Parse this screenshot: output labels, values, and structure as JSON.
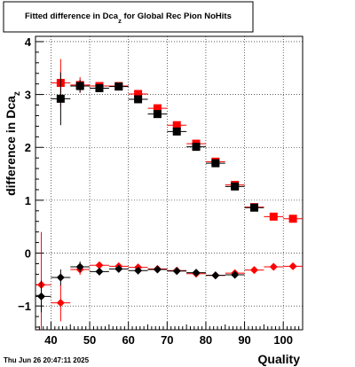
{
  "title": "Fitted difference in Dca",
  "title_sub": "z",
  "title_suffix": " for Global Rec Pion NoHits",
  "ylabel": "difference in Dca",
  "ylabel_sub": "z",
  "xlabel": "Quality",
  "datestamp": "Thu Jun 26 20:47:11 2025",
  "colors": {
    "red": "#ff0000",
    "black": "#000000",
    "frame": "#000000"
  },
  "chart_data": {
    "type": "scatter",
    "xlim": [
      36,
      105
    ],
    "ylim": [
      -1.45,
      4.1
    ],
    "grid": true,
    "x_ticks": [
      40,
      50,
      60,
      70,
      80,
      90,
      100
    ],
    "y_ticks": [
      -1,
      0,
      1,
      2,
      3,
      4
    ],
    "series": [
      {
        "color": "red",
        "marker": "square",
        "points": [
          {
            "x": 42.5,
            "y": 3.22,
            "yerr": 0.45
          },
          {
            "x": 47.5,
            "y": 3.18,
            "yerr": 0.15
          },
          {
            "x": 52.5,
            "y": 3.16,
            "yerr": 0.06
          },
          {
            "x": 57.5,
            "y": 3.16,
            "yerr": 0.04
          },
          {
            "x": 62.5,
            "y": 3.01,
            "yerr": 0.03
          },
          {
            "x": 67.5,
            "y": 2.74,
            "yerr": 0.03
          },
          {
            "x": 72.5,
            "y": 2.42,
            "yerr": 0.03
          },
          {
            "x": 77.5,
            "y": 2.07,
            "yerr": 0.02
          },
          {
            "x": 82.5,
            "y": 1.73,
            "yerr": 0.02
          },
          {
            "x": 87.5,
            "y": 1.29,
            "yerr": 0.02
          },
          {
            "x": 92.5,
            "y": 0.87,
            "yerr": 0.02
          },
          {
            "x": 97.5,
            "y": 0.69,
            "yerr": 0.02
          },
          {
            "x": 102.5,
            "y": 0.65,
            "yerr": 0.02
          }
        ]
      },
      {
        "color": "black",
        "marker": "square",
        "points": [
          {
            "x": 42.5,
            "y": 2.92,
            "yerr": 0.5
          },
          {
            "x": 47.5,
            "y": 3.16,
            "yerr": 0.12
          },
          {
            "x": 52.5,
            "y": 3.12,
            "yerr": 0.05
          },
          {
            "x": 57.5,
            "y": 3.15,
            "yerr": 0.04
          },
          {
            "x": 62.5,
            "y": 2.91,
            "yerr": 0.03
          },
          {
            "x": 67.5,
            "y": 2.63,
            "yerr": 0.03
          },
          {
            "x": 72.5,
            "y": 2.3,
            "yerr": 0.03
          },
          {
            "x": 77.5,
            "y": 2.01,
            "yerr": 0.02
          },
          {
            "x": 82.5,
            "y": 1.7,
            "yerr": 0.02
          },
          {
            "x": 87.5,
            "y": 1.26,
            "yerr": 0.02
          },
          {
            "x": 92.5,
            "y": 0.86,
            "yerr": 0.02
          }
        ]
      },
      {
        "color": "red",
        "marker": "diamond",
        "points": [
          {
            "x": 37.5,
            "y": -0.6,
            "yerr": 1.0
          },
          {
            "x": 42.5,
            "y": -0.94,
            "yerr": 0.35
          },
          {
            "x": 47.5,
            "y": -0.31,
            "yerr": 0.1
          },
          {
            "x": 52.5,
            "y": -0.23,
            "yerr": 0.05
          },
          {
            "x": 57.5,
            "y": -0.25,
            "yerr": 0.04
          },
          {
            "x": 62.5,
            "y": -0.27,
            "yerr": 0.03
          },
          {
            "x": 67.5,
            "y": -0.3,
            "yerr": 0.03
          },
          {
            "x": 72.5,
            "y": -0.33,
            "yerr": 0.02
          },
          {
            "x": 77.5,
            "y": -0.39,
            "yerr": 0.02
          },
          {
            "x": 82.5,
            "y": -0.42,
            "yerr": 0.02
          },
          {
            "x": 87.5,
            "y": -0.38,
            "yerr": 0.02
          },
          {
            "x": 92.5,
            "y": -0.32,
            "yerr": 0.02
          },
          {
            "x": 97.5,
            "y": -0.26,
            "yerr": 0.02
          },
          {
            "x": 102.5,
            "y": -0.25,
            "yerr": 0.02
          }
        ]
      },
      {
        "color": "black",
        "marker": "diamond",
        "points": [
          {
            "x": 37.5,
            "y": -0.82,
            "yerr": 0.3
          },
          {
            "x": 42.5,
            "y": -0.46,
            "yerr": 0.15
          },
          {
            "x": 47.5,
            "y": -0.26,
            "yerr": 0.1
          },
          {
            "x": 52.5,
            "y": -0.35,
            "yerr": 0.05
          },
          {
            "x": 57.5,
            "y": -0.3,
            "yerr": 0.04
          },
          {
            "x": 62.5,
            "y": -0.33,
            "yerr": 0.03
          },
          {
            "x": 67.5,
            "y": -0.31,
            "yerr": 0.03
          },
          {
            "x": 72.5,
            "y": -0.34,
            "yerr": 0.02
          },
          {
            "x": 77.5,
            "y": -0.37,
            "yerr": 0.02
          },
          {
            "x": 82.5,
            "y": -0.42,
            "yerr": 0.02
          },
          {
            "x": 87.5,
            "y": -0.41,
            "yerr": 0.02
          }
        ]
      }
    ]
  }
}
